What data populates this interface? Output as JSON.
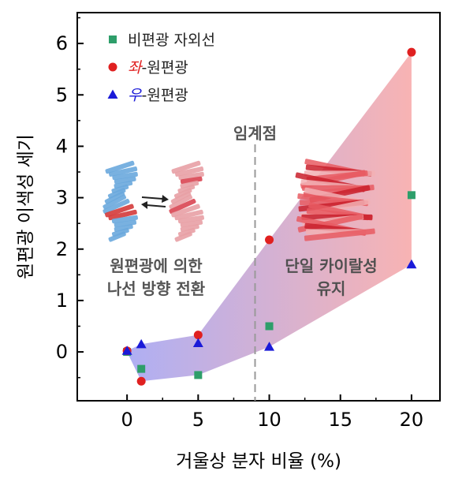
{
  "chart_data": {
    "type": "scatter",
    "title": "",
    "xlabel": "거울상 분자 비율 (%)",
    "ylabel": "원편광 이색성 세기",
    "xlim": [
      -3.5,
      22
    ],
    "ylim": [
      -0.95,
      6.6
    ],
    "x_ticks": [
      0,
      5,
      10,
      15,
      20
    ],
    "y_ticks": [
      0,
      1,
      2,
      3,
      4,
      5,
      6
    ],
    "grid": false,
    "legend_position": "top-left",
    "series": [
      {
        "name": "비편광 자외선",
        "prefix": "",
        "suffix": "비편광 자외선",
        "marker": "square",
        "color": "#2e9e6a",
        "points": [
          [
            0,
            0.0
          ],
          [
            1,
            -0.33
          ],
          [
            5,
            -0.45
          ],
          [
            10,
            0.5
          ],
          [
            20,
            3.05
          ]
        ]
      },
      {
        "name": "좌-원편광",
        "prefix": "좌",
        "suffix": "-원편광",
        "marker": "circle",
        "color": "#e02020",
        "points": [
          [
            0,
            0.02
          ],
          [
            1,
            -0.57
          ],
          [
            5,
            0.33
          ],
          [
            10,
            2.18
          ],
          [
            20,
            5.83
          ]
        ]
      },
      {
        "name": "우-원편광",
        "prefix": "우",
        "suffix": "-원편광",
        "marker": "triangle",
        "color": "#1a1ad8",
        "points": [
          [
            0,
            0.02
          ],
          [
            1,
            0.15
          ],
          [
            5,
            0.17
          ],
          [
            10,
            0.1
          ],
          [
            20,
            1.7
          ]
        ]
      }
    ],
    "annotations": {
      "critical_point_x": 9,
      "critical_point_label": "임계점",
      "left_region_line1": "원편광에 의한",
      "left_region_line2": "나선 방향 전환",
      "right_region_line1": "단일 카이랄성",
      "right_region_line2": "유지"
    },
    "band_colors": {
      "left": "#a4a4f2",
      "right": "#f7a9a9"
    },
    "helix_colors": {
      "blue_helix": "#6aa8dd",
      "blue_accent": "#d43a3a",
      "pink_helix": "#e8a0a5",
      "pink_accent": "#d94552",
      "stack": "#e85a62",
      "stack_dark": "#c9202c",
      "stack_light": "#f2b0b4"
    },
    "switch_icon": "double-arrow-switch-icon"
  }
}
